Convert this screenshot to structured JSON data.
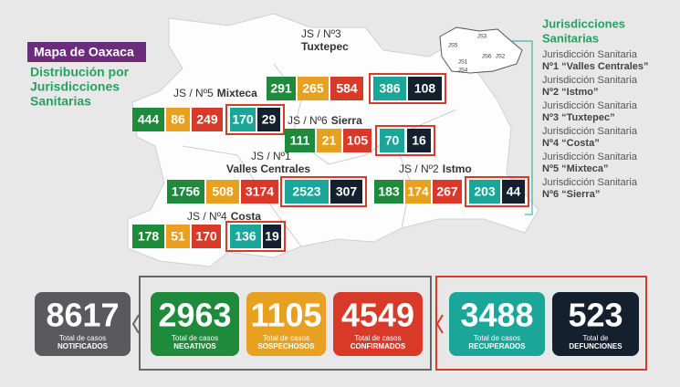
{
  "header": {
    "title": "Mapa de Oaxaca",
    "subtitle": [
      "Distribución por",
      "Jurisdicciones",
      "Sanitarias"
    ]
  },
  "legend": {
    "title": [
      "Jurisdicciones",
      "Sanitarias"
    ],
    "items": [
      {
        "line1": "Jurisdicción Sanitaria",
        "line2": "Nº1 “Valles Centrales”"
      },
      {
        "line1": "Jurisdicción Sanitaria",
        "line2": "Nº2 “Istmo”"
      },
      {
        "line1": "Jurisdicción Sanitaria",
        "line2": "Nº3 “Tuxtepec”"
      },
      {
        "line1": "Jurisdicción Sanitaria",
        "line2": "Nº4 “Costa”"
      },
      {
        "line1": "Jurisdicción Sanitaria",
        "line2": "Nº5 “Mixteca”"
      },
      {
        "line1": "Jurisdicción Sanitaria",
        "line2": "Nº6 “Sierra”"
      }
    ],
    "mini_map_labels": [
      "JS1",
      "JS2",
      "JS3",
      "JS4",
      "JS5",
      "JS6"
    ]
  },
  "jurisdictions": [
    {
      "prefix": "JS / Nº3",
      "name": "Tuxtepec",
      "values": [
        291,
        265,
        584,
        386,
        108
      ]
    },
    {
      "prefix": "JS / Nº5",
      "name": "Mixteca",
      "values": [
        444,
        86,
        249,
        170,
        29
      ]
    },
    {
      "prefix": "JS / Nº6",
      "name": "Sierra",
      "values": [
        111,
        21,
        105,
        70,
        16
      ]
    },
    {
      "prefix": "JS / Nº1",
      "name": "Valles Centrales",
      "values": [
        1756,
        508,
        3174,
        2523,
        307
      ]
    },
    {
      "prefix": "JS / Nº2",
      "name": "Istmo",
      "values": [
        183,
        174,
        267,
        203,
        44
      ]
    },
    {
      "prefix": "JS / Nº4",
      "name": "Costa",
      "values": [
        178,
        51,
        170,
        136,
        19
      ]
    }
  ],
  "totals": [
    {
      "value": 8617,
      "caption": "Total de casos",
      "label": "NOTIFICADOS"
    },
    {
      "value": 2963,
      "caption": "Total de casos",
      "label": "NEGATIVOS"
    },
    {
      "value": 1105,
      "caption": "Total de casos",
      "label": "SOSPECHOSOS"
    },
    {
      "value": 4549,
      "caption": "Total de casos",
      "label": "CONFIRMADOS"
    },
    {
      "value": 3488,
      "caption": "Total de casos",
      "label": "RECUPERADOS"
    },
    {
      "value": 523,
      "caption": "Total de",
      "label": "DEFUNCIONES"
    }
  ]
}
